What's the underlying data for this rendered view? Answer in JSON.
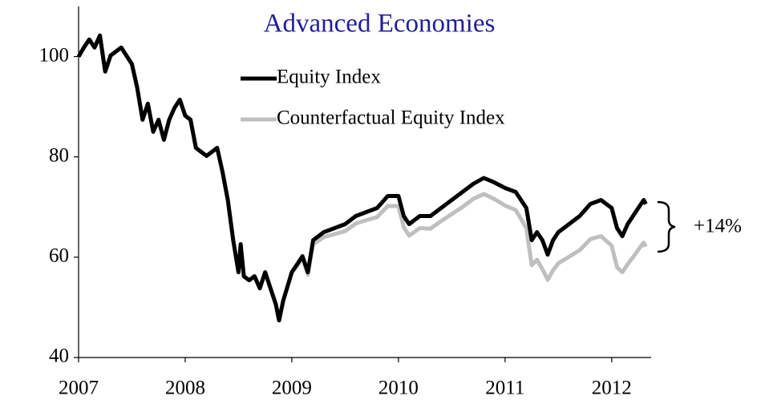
{
  "chart_data": {
    "type": "line",
    "title": "Advanced Economies",
    "title_color": "#1f1f99",
    "annotation": "+14%",
    "legend": "upper center",
    "xlim": [
      2007,
      2012.37
    ],
    "xticks": [
      2007,
      2008,
      2009,
      2010,
      2011,
      2012
    ],
    "ylim": [
      40,
      110
    ],
    "yticks": [
      40,
      60,
      80,
      100
    ],
    "grid": false,
    "x": [
      2007.0,
      2007.05,
      2007.1,
      2007.15,
      2007.2,
      2007.25,
      2007.3,
      2007.4,
      2007.5,
      2007.55,
      2007.6,
      2007.65,
      2007.7,
      2007.75,
      2007.8,
      2007.85,
      2007.9,
      2007.95,
      2008.0,
      2008.05,
      2008.1,
      2008.15,
      2008.2,
      2008.3,
      2008.35,
      2008.4,
      2008.45,
      2008.5,
      2008.52,
      2008.55,
      2008.6,
      2008.65,
      2008.7,
      2008.75,
      2008.8,
      2008.85,
      2008.88,
      2008.92,
      2009.0,
      2009.05,
      2009.1,
      2009.15,
      2009.2,
      2009.3,
      2009.4,
      2009.5,
      2009.6,
      2009.7,
      2009.8,
      2009.9,
      2010.0,
      2010.05,
      2010.1,
      2010.2,
      2010.3,
      2010.4,
      2010.5,
      2010.6,
      2010.7,
      2010.8,
      2010.9,
      2011.0,
      2011.1,
      2011.2,
      2011.25,
      2011.3,
      2011.35,
      2011.4,
      2011.45,
      2011.5,
      2011.6,
      2011.7,
      2011.8,
      2011.9,
      2012.0,
      2012.05,
      2012.1,
      2012.15,
      2012.2,
      2012.25,
      2012.3,
      2012.32
    ],
    "series": [
      {
        "name": "Counterfactual Equity Index",
        "color": "#bfbfbf",
        "width": 5,
        "values": [
          100,
          101.8,
          103.4,
          101.8,
          104.2,
          97,
          100.2,
          101.8,
          98.5,
          93.8,
          87.4,
          90.6,
          85,
          87.4,
          83.4,
          87.4,
          89.8,
          91.4,
          88.2,
          87.4,
          81.8,
          81,
          80.2,
          81.8,
          77,
          71.4,
          63.4,
          57,
          62.6,
          56.2,
          55.4,
          56.2,
          53.8,
          57,
          53.8,
          50.6,
          47.4,
          51.4,
          57,
          58.3,
          59.8,
          56.5,
          62.6,
          64,
          64.6,
          65.2,
          66.7,
          67.4,
          68,
          70.2,
          70.2,
          66,
          64.3,
          65.8,
          65.7,
          67.2,
          68.6,
          70,
          71.6,
          72.6,
          71.6,
          70.3,
          69.4,
          65.8,
          58.4,
          59.5,
          57.6,
          55.5,
          57.4,
          58.8,
          60.1,
          61.4,
          63.6,
          64.2,
          62.3,
          58,
          57,
          58.6,
          60,
          61.5,
          62.9,
          62.1
        ]
      },
      {
        "name": "Equity Index",
        "color": "#000000",
        "width": 5,
        "values": [
          100,
          101.8,
          103.4,
          101.8,
          104.2,
          97,
          100.2,
          101.8,
          98.5,
          93.8,
          87.4,
          90.6,
          85,
          87.4,
          83.4,
          87.4,
          89.8,
          91.4,
          88.2,
          87.4,
          81.8,
          81,
          80.2,
          81.8,
          77,
          71.4,
          63.4,
          57,
          62.6,
          56.2,
          55.4,
          56.2,
          53.8,
          57,
          53.8,
          50.6,
          47.4,
          51.4,
          57,
          58.6,
          60.2,
          57,
          63.4,
          65,
          65.8,
          66.6,
          68.2,
          69,
          69.8,
          72.2,
          72.2,
          68.2,
          66.6,
          68.2,
          68.2,
          69.8,
          71.4,
          73,
          74.6,
          75.8,
          74.9,
          73.8,
          73,
          69.8,
          63.4,
          65,
          63.4,
          60.5,
          63.4,
          65,
          66.6,
          68.2,
          70.6,
          71.4,
          69.8,
          65.8,
          64.2,
          66.6,
          68.2,
          69.8,
          71.4,
          70.6
        ]
      }
    ]
  }
}
